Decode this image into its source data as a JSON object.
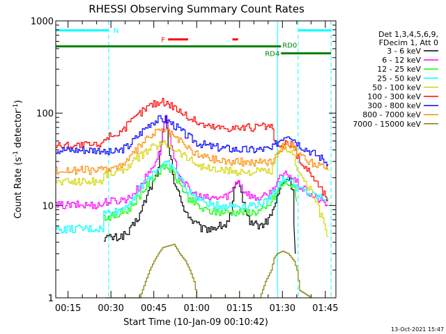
{
  "chart_data": {
    "type": "line",
    "title": "RHESSI Observing Summary Count Rates",
    "xlabel": "Start Time (10-Jan-09 00:10:42)",
    "ylabel_main": "Count Rate (s",
    "ylabel_sup1": "-1",
    "ylabel_mid": " detector",
    "ylabel_sup2": "-1",
    "ylabel_end": ")",
    "yscale": "log",
    "ylim": [
      1,
      1000
    ],
    "xlim": [
      10.7,
      108.7
    ],
    "ytick_labels": [
      "1",
      "10",
      "100",
      "1000"
    ],
    "xtick_labels": [
      "00:15",
      "00:30",
      "00:45",
      "01:00",
      "01:15",
      "01:30",
      "01:45"
    ],
    "xtick_values": [
      15,
      30,
      45,
      60,
      75,
      90,
      105
    ],
    "timestamp": "13-Oct-2021 15:47",
    "legend_header": [
      "Det 1,3,4,5,6,9,",
      "FDecim 1, Att 0"
    ],
    "legend_position": "right",
    "series": [
      {
        "name": "3 - 6 keV",
        "color": "#000000",
        "points": [
          [
            27.5,
            4.5
          ],
          [
            32,
            4.5
          ],
          [
            36,
            5
          ],
          [
            40,
            8
          ],
          [
            43,
            14
          ],
          [
            46,
            22
          ],
          [
            48,
            60
          ],
          [
            49,
            90
          ],
          [
            50,
            45
          ],
          [
            52,
            18
          ],
          [
            55,
            10
          ],
          [
            58,
            7
          ],
          [
            62,
            5.5
          ],
          [
            66,
            5.8
          ],
          [
            70,
            6.2
          ],
          [
            72,
            8
          ],
          [
            73,
            15
          ],
          [
            74.5,
            17
          ],
          [
            76,
            12
          ],
          [
            78,
            7
          ],
          [
            82,
            6
          ],
          [
            84,
            6.5
          ],
          [
            86,
            8
          ],
          [
            88,
            12
          ],
          [
            90,
            18
          ],
          [
            92,
            20
          ],
          [
            93.5,
            15
          ],
          [
            94.5,
            3
          ]
        ]
      },
      {
        "name": "6 - 12 keV",
        "color": "#ff00ff",
        "points": [
          [
            10.7,
            10
          ],
          [
            27,
            10.2
          ],
          [
            27.5,
            11
          ],
          [
            32,
            11.2
          ],
          [
            36,
            12
          ],
          [
            40,
            16
          ],
          [
            44,
            25
          ],
          [
            47,
            38
          ],
          [
            48.5,
            80
          ],
          [
            49.2,
            100
          ],
          [
            50,
            65
          ],
          [
            52,
            30
          ],
          [
            55,
            18
          ],
          [
            58,
            14
          ],
          [
            62,
            12
          ],
          [
            66,
            12
          ],
          [
            70,
            12.5
          ],
          [
            72,
            14
          ],
          [
            73.5,
            18
          ],
          [
            74.5,
            19
          ],
          [
            76,
            15
          ],
          [
            80,
            12
          ],
          [
            84,
            12.5
          ],
          [
            86,
            14
          ],
          [
            88,
            18
          ],
          [
            90,
            21
          ],
          [
            92,
            22
          ],
          [
            94,
            19
          ],
          [
            96,
            16
          ],
          [
            100,
            13
          ],
          [
            104,
            11
          ],
          [
            106,
            10
          ]
        ]
      },
      {
        "name": "12 - 25 keV",
        "color": "#00ff00",
        "points": [
          [
            27.5,
            7.5
          ],
          [
            32,
            7.8
          ],
          [
            36,
            9
          ],
          [
            40,
            13
          ],
          [
            44,
            19
          ],
          [
            47,
            24
          ],
          [
            49,
            27
          ],
          [
            51,
            24
          ],
          [
            54,
            17
          ],
          [
            57,
            12
          ],
          [
            62,
            9
          ],
          [
            66,
            8.5
          ],
          [
            70,
            8.5
          ],
          [
            75,
            8.5
          ],
          [
            80,
            8.5
          ],
          [
            84,
            9
          ],
          [
            86,
            11
          ],
          [
            88,
            14
          ],
          [
            90,
            17
          ],
          [
            92,
            17.5
          ],
          [
            94,
            15
          ],
          [
            95,
            11
          ]
        ]
      },
      {
        "name": "25 - 50 keV",
        "color": "#00ffff",
        "points": [
          [
            10.7,
            5.5
          ],
          [
            27,
            5.6
          ],
          [
            27.5,
            8.2
          ],
          [
            32,
            8.6
          ],
          [
            36,
            10.5
          ],
          [
            40,
            15
          ],
          [
            44,
            22
          ],
          [
            47,
            26
          ],
          [
            49,
            29
          ],
          [
            51,
            27
          ],
          [
            54,
            20
          ],
          [
            57,
            14
          ],
          [
            62,
            11
          ],
          [
            66,
            10
          ],
          [
            70,
            10
          ],
          [
            75,
            10
          ],
          [
            80,
            10.2
          ],
          [
            84,
            10.8
          ],
          [
            86,
            13
          ],
          [
            88,
            16
          ],
          [
            90,
            19
          ],
          [
            92,
            20
          ],
          [
            94,
            17
          ],
          [
            96,
            15
          ],
          [
            100,
            13
          ],
          [
            104,
            12
          ],
          [
            106,
            12
          ]
        ]
      },
      {
        "name": "50 - 100 keV",
        "color": "#d4d400",
        "points": [
          [
            10.7,
            18
          ],
          [
            27,
            18.5
          ],
          [
            27.5,
            22
          ],
          [
            32,
            23
          ],
          [
            36,
            27
          ],
          [
            40,
            34
          ],
          [
            44,
            42
          ],
          [
            47,
            46
          ],
          [
            49,
            47
          ],
          [
            52,
            42
          ],
          [
            56,
            34
          ],
          [
            60,
            28
          ],
          [
            64,
            25
          ],
          [
            68,
            24
          ],
          [
            72,
            23.5
          ],
          [
            76,
            23
          ],
          [
            80,
            23
          ],
          [
            84,
            23.5
          ],
          [
            86,
            23
          ],
          [
            88,
            34
          ],
          [
            90,
            40
          ],
          [
            92,
            42
          ],
          [
            94,
            32
          ],
          [
            96,
            22
          ],
          [
            100,
            14
          ],
          [
            104,
            7
          ],
          [
            106,
            4.5
          ]
        ]
      },
      {
        "name": "100 - 300 keV",
        "color": "#ff0000",
        "points": [
          [
            10.7,
            45
          ],
          [
            27,
            45
          ],
          [
            27.5,
            55
          ],
          [
            32,
            60
          ],
          [
            36,
            75
          ],
          [
            40,
            100
          ],
          [
            44,
            125
          ],
          [
            47,
            132
          ],
          [
            49,
            132
          ],
          [
            52,
            118
          ],
          [
            56,
            95
          ],
          [
            60,
            80
          ],
          [
            64,
            72
          ],
          [
            68,
            70
          ],
          [
            72,
            70
          ],
          [
            76,
            70
          ],
          [
            80,
            70
          ],
          [
            84,
            72
          ],
          [
            86,
            70
          ],
          [
            88,
            42
          ],
          [
            90,
            44
          ],
          [
            92,
            48
          ],
          [
            94,
            42
          ],
          [
            96,
            30
          ],
          [
            100,
            22
          ],
          [
            104,
            14
          ],
          [
            106,
            11.5
          ]
        ]
      },
      {
        "name": "300 - 800 keV",
        "color": "#0000ff",
        "points": [
          [
            10.7,
            40
          ],
          [
            27,
            40
          ],
          [
            27.5,
            37
          ],
          [
            32,
            38
          ],
          [
            36,
            44
          ],
          [
            40,
            60
          ],
          [
            44,
            80
          ],
          [
            47,
            86
          ],
          [
            49,
            86
          ],
          [
            52,
            74
          ],
          [
            56,
            58
          ],
          [
            60,
            48
          ],
          [
            64,
            44
          ],
          [
            68,
            42
          ],
          [
            72,
            41
          ],
          [
            76,
            40
          ],
          [
            80,
            40
          ],
          [
            84,
            41
          ],
          [
            86,
            40
          ],
          [
            88,
            48
          ],
          [
            90,
            55
          ],
          [
            92,
            60
          ],
          [
            94,
            52
          ],
          [
            96,
            45
          ],
          [
            100,
            38
          ],
          [
            104,
            32
          ],
          [
            106,
            28
          ]
        ]
      },
      {
        "name": "800 - 7000 keV",
        "color": "#ff8c00",
        "points": [
          [
            10.7,
            24
          ],
          [
            27,
            24
          ],
          [
            27.5,
            25
          ],
          [
            32,
            26
          ],
          [
            36,
            31
          ],
          [
            40,
            44
          ],
          [
            44,
            58
          ],
          [
            47,
            65
          ],
          [
            49,
            65
          ],
          [
            52,
            56
          ],
          [
            56,
            44
          ],
          [
            60,
            36
          ],
          [
            64,
            33
          ],
          [
            68,
            31
          ],
          [
            72,
            30
          ],
          [
            76,
            29.5
          ],
          [
            80,
            29.5
          ],
          [
            84,
            30
          ],
          [
            86,
            30
          ],
          [
            88,
            38
          ],
          [
            90,
            44
          ],
          [
            92,
            48
          ],
          [
            94,
            42
          ],
          [
            96,
            34
          ],
          [
            100,
            29
          ],
          [
            104,
            26
          ],
          [
            106,
            24
          ]
        ]
      },
      {
        "name": "7000 - 15000 keV",
        "color": "#808000",
        "points": [
          [
            28,
            1
          ],
          [
            40,
            1
          ],
          [
            42,
            1.5
          ],
          [
            43.5,
            2
          ],
          [
            45,
            2.5
          ],
          [
            46.5,
            3
          ],
          [
            48,
            3.5
          ],
          [
            52,
            3.8
          ],
          [
            54,
            3
          ],
          [
            56,
            2.5
          ],
          [
            57.5,
            2
          ],
          [
            59,
            1.5
          ],
          [
            60,
            1
          ],
          [
            82,
            1
          ],
          [
            84,
            1.5
          ],
          [
            86,
            2
          ],
          [
            87,
            2.7
          ],
          [
            88,
            3
          ],
          [
            90,
            3.2
          ],
          [
            92,
            3
          ],
          [
            94,
            2.5
          ],
          [
            95,
            2
          ],
          [
            96,
            1.2
          ],
          [
            100,
            1
          ]
        ]
      }
    ],
    "annotations": [
      {
        "label": "N",
        "color": "#00ffff",
        "segments": [
          [
            10.7,
            29.2
          ],
          [
            95.5,
            107
          ]
        ],
        "y": 790
      },
      {
        "label": "F",
        "color": "#ff0000",
        "segments": [
          [
            50,
            57
          ],
          [
            72.5,
            74.5
          ]
        ],
        "y": 630
      },
      {
        "label": "RD0",
        "color": "#008000",
        "segments": [
          [
            10.7,
            89.5
          ]
        ],
        "y": 530
      },
      {
        "label": "RD4",
        "color": "#008000",
        "segments": [
          [
            89.5,
            107
          ]
        ],
        "y": 445
      }
    ],
    "vertical_lines": [
      {
        "x": 29.2,
        "color": "#00ffff",
        "style": "dashed"
      },
      {
        "x": 88.3,
        "color": "#00ffff",
        "style": "solid"
      },
      {
        "x": 95.5,
        "color": "#00ffff",
        "style": "dashed"
      },
      {
        "x": 107,
        "color": "#00ffff",
        "style": "dashed"
      }
    ]
  }
}
